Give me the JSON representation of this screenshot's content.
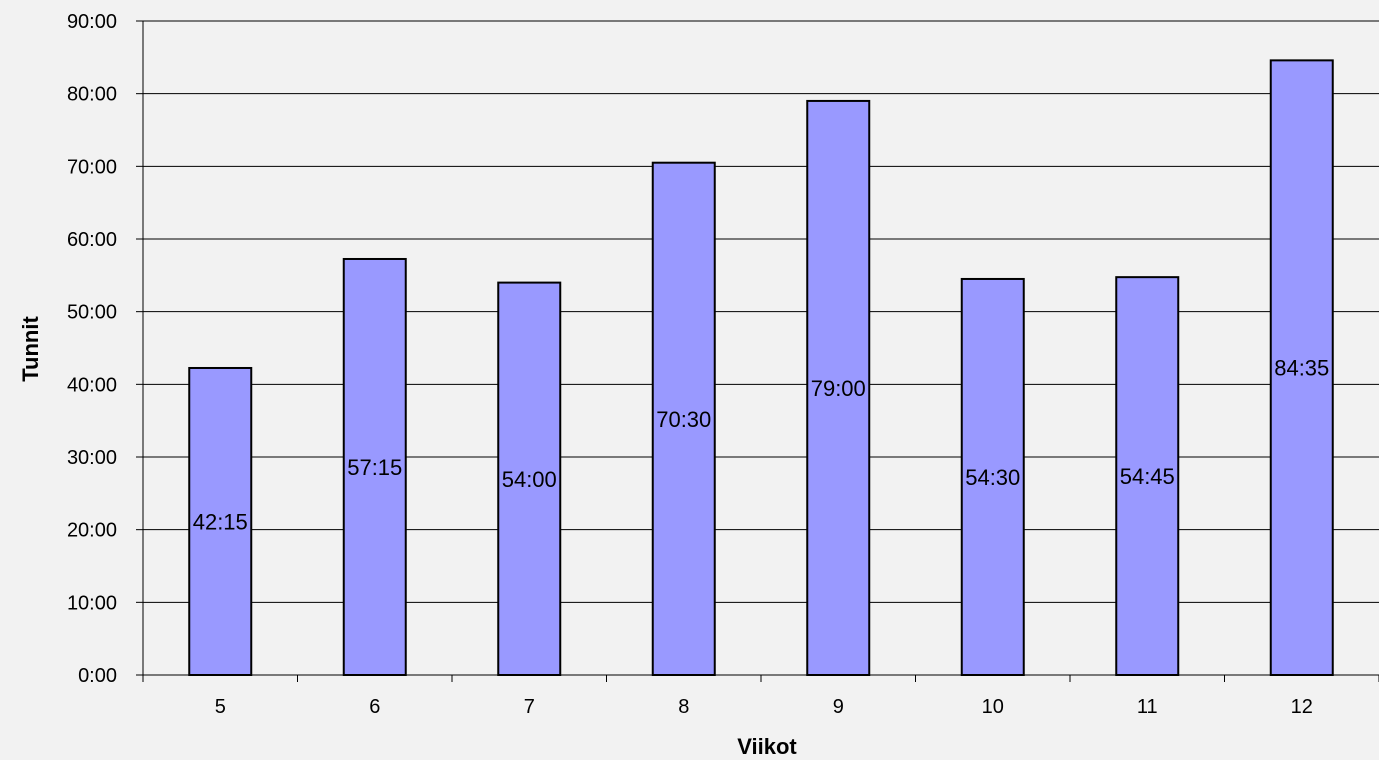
{
  "chart_data": {
    "type": "bar",
    "categories": [
      "5",
      "6",
      "7",
      "8",
      "9",
      "10",
      "11",
      "12"
    ],
    "values": [
      42.25,
      57.25,
      54.0,
      70.5,
      79.0,
      54.5,
      54.75,
      84.5833
    ],
    "value_labels": [
      "42:15",
      "57:15",
      "54:00",
      "70:30",
      "79:00",
      "54:30",
      "54:45",
      "84:35"
    ],
    "y_tick_labels": [
      "0:00",
      "10:00",
      "20:00",
      "30:00",
      "40:00",
      "50:00",
      "60:00",
      "70:00",
      "80:00",
      "90:00"
    ],
    "xlabel": "Viikot",
    "ylabel": "Tunnit",
    "ylim": [
      0,
      90
    ],
    "ytick_step": 10,
    "grid": true,
    "legend": "none",
    "colors": {
      "bar_fill": "#9999ff",
      "bar_stroke": "#000000",
      "gridline": "#000000",
      "background": "#f2f2f2"
    }
  }
}
